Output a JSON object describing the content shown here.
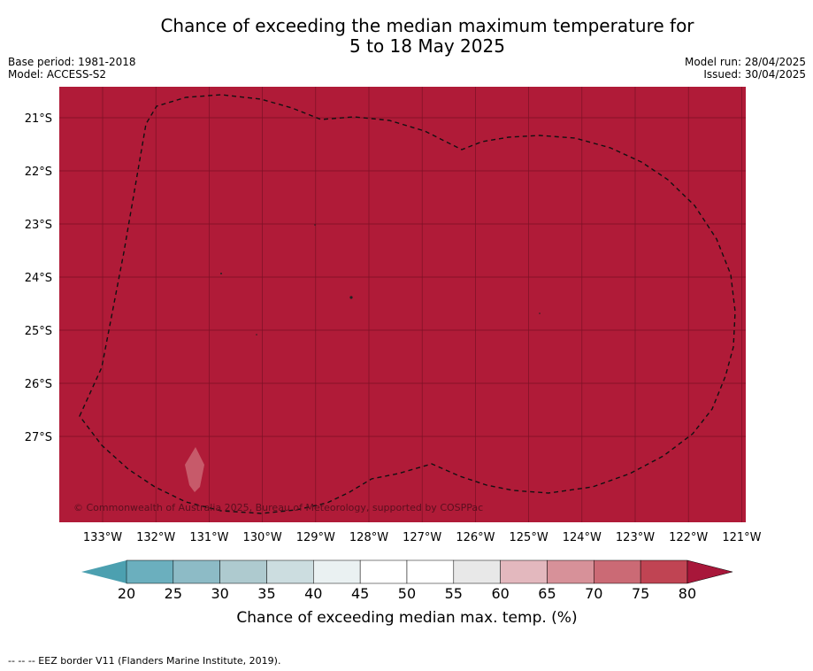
{
  "title_line1": "Chance of exceeding the median maximum temperature for",
  "title_line2": "5 to 18 May 2025",
  "meta": {
    "base_period": "Base period: 1981-2018",
    "model": "Model: ACCESS-S2",
    "model_run": "Model run: 28/04/2025",
    "issued": "Issued: 30/04/2025"
  },
  "map": {
    "background_color": "#B01B38",
    "copyright": "© Commonwealth of Australia 2025, Bureau of Meteorology, supported by COSPPac",
    "lat_labels": [
      "21°S",
      "22°S",
      "23°S",
      "24°S",
      "25°S",
      "26°S",
      "27°S"
    ],
    "lon_labels": [
      "133°W",
      "132°W",
      "131°W",
      "130°W",
      "129°W",
      "128°W",
      "127°W",
      "126°W",
      "125°W",
      "124°W",
      "123°W",
      "122°W",
      "121°W"
    ]
  },
  "colorbar": {
    "ticks": [
      "20",
      "25",
      "30",
      "35",
      "40",
      "45",
      "50",
      "55",
      "60",
      "65",
      "70",
      "75",
      "80"
    ],
    "colors": [
      "#6BAFBE",
      "#8DBBC6",
      "#AECACF",
      "#CCDDE0",
      "#EAF1F2",
      "#FFFFFF",
      "#FFFFFF",
      "#E8E8E8",
      "#E3B8BE",
      "#D79199",
      "#CB6A75",
      "#C04453"
    ],
    "low_color": "#4CA0B0",
    "high_color": "#A8173A",
    "title": "Chance of exceeding median max. temp. (%)"
  },
  "footnote": "--  --  -- EEZ border V11 (Flanders Marine Institute, 2019)."
}
